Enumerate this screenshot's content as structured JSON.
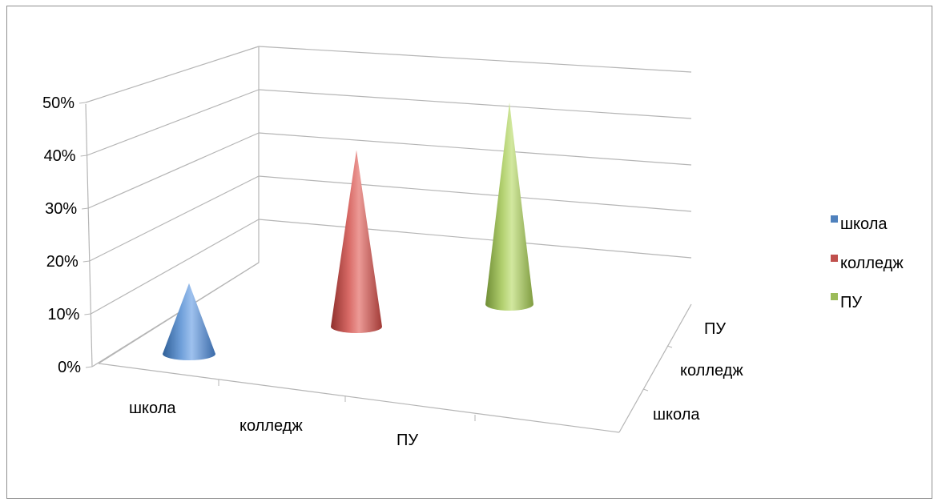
{
  "chart_data": {
    "type": "bar",
    "subtype": "3d-cone",
    "title": "",
    "categories": [
      "школа",
      "колледж",
      "ПУ"
    ],
    "depth_categories": [
      "школа",
      "колледж",
      "ПУ"
    ],
    "series": [
      {
        "name": "школа",
        "category": "школа",
        "value": 14,
        "color": "#4f81bd"
      },
      {
        "name": "колледж",
        "category": "колледж",
        "value": 35,
        "color": "#c0504d"
      },
      {
        "name": "ПУ",
        "category": "ПУ",
        "value": 40,
        "color": "#9bbb59"
      }
    ],
    "y_ticks": [
      "0%",
      "10%",
      "20%",
      "30%",
      "40%",
      "50%"
    ],
    "ylim": [
      0,
      0.5
    ],
    "grid": true,
    "legend": {
      "placement": "right",
      "entries": [
        {
          "label": "школа",
          "color": "#4f81bd"
        },
        {
          "label": "колледж",
          "color": "#c0504d"
        },
        {
          "label": "ПУ",
          "color": "#9bbb59"
        }
      ]
    }
  }
}
